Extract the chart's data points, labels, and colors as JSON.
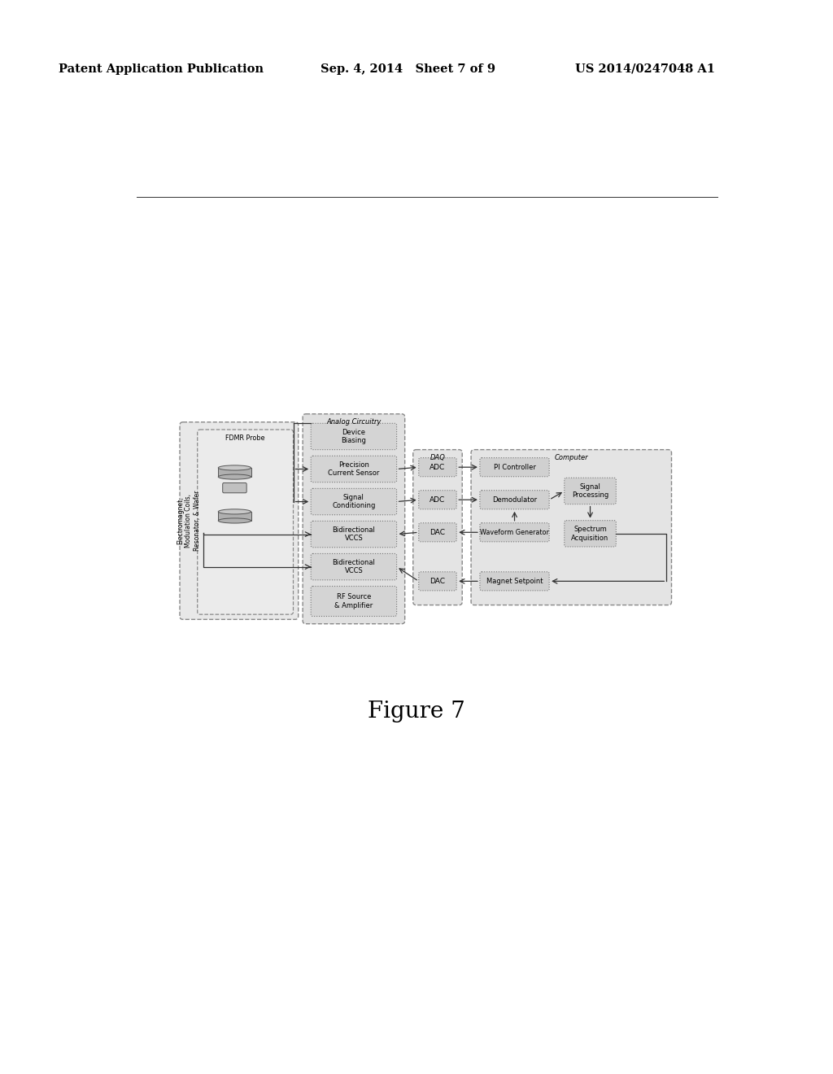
{
  "header_left": "Patent Application Publication",
  "header_mid": "Sep. 4, 2014   Sheet 7 of 9",
  "header_right": "US 2014/0247048 A1",
  "figure_caption": "Figure 7",
  "bg_color": "#ffffff",
  "header_font_size": 10.5,
  "caption_font_size": 20
}
